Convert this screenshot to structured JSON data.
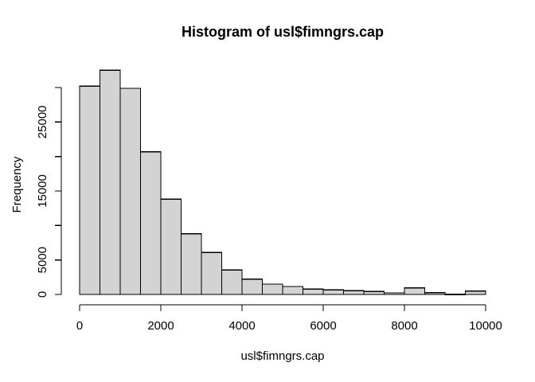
{
  "chart_data": {
    "type": "bar",
    "subtype": "histogram",
    "title": "Histogram of usl$fimngrs.cap",
    "xlabel": "usl$fimngrs.cap",
    "ylabel": "Frequency",
    "bin_width": 500,
    "bin_edges": [
      0,
      500,
      1000,
      1500,
      2000,
      2500,
      3000,
      3500,
      4000,
      4500,
      5000,
      5500,
      6000,
      6500,
      7000,
      7500,
      8000,
      8500,
      9000,
      9500,
      10000
    ],
    "values": [
      30200,
      32500,
      29900,
      20700,
      13800,
      8800,
      6100,
      3550,
      2200,
      1500,
      1150,
      800,
      650,
      550,
      420,
      230,
      950,
      250,
      50,
      500
    ],
    "xlim": [
      0,
      10000
    ],
    "ylim": [
      0,
      30000
    ],
    "x_ticks": [
      0,
      2000,
      4000,
      6000,
      8000,
      10000
    ],
    "x_tick_labels": [
      "0",
      "2000",
      "4000",
      "6000",
      "8000",
      "10000"
    ],
    "y_ticks": [
      0,
      5000,
      10000,
      15000,
      20000,
      25000,
      30000
    ],
    "y_tick_labels": [
      "0",
      "5000",
      "",
      "15000",
      "",
      "25000",
      ""
    ],
    "grid": false,
    "legend_position": "none",
    "bar_fill": "#d3d3d3",
    "bar_stroke": "#000000",
    "axis_color": "#000000",
    "background": "#ffffff"
  }
}
